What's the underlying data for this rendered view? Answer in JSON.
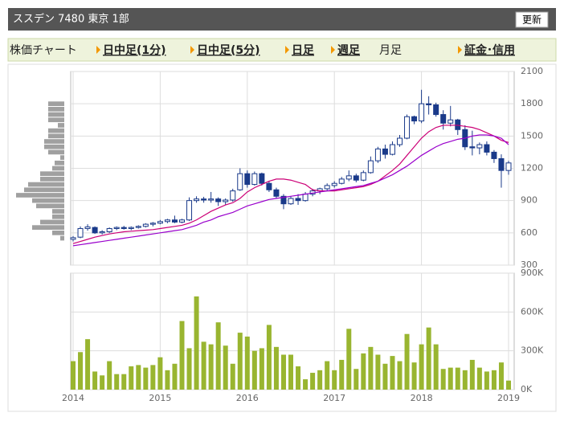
{
  "header": {
    "title": "ススデン  7480  東京 1部",
    "button": "更新"
  },
  "tabs": [
    {
      "label": "株価チャート",
      "link": false
    },
    {
      "label": "日中足(1分)",
      "link": true
    },
    {
      "label": "日中足(5分)",
      "link": true
    },
    {
      "label": "日足",
      "link": true
    },
    {
      "label": "週足",
      "link": true
    },
    {
      "label": "月足",
      "link": false
    },
    {
      "label": "証金･信用",
      "link": true
    }
  ],
  "chart_data": [
    {
      "type": "candlestick",
      "up_color": "#ffffff",
      "down_color": "#1a3a8a",
      "ylim": [
        300,
        2100
      ],
      "yticks": [
        300,
        600,
        900,
        1200,
        1500,
        1800,
        2100
      ],
      "grid": true,
      "ohlc": [
        [
          540,
          570,
          520,
          555
        ],
        [
          560,
          660,
          550,
          640
        ],
        [
          640,
          680,
          620,
          655
        ],
        [
          650,
          660,
          590,
          600
        ],
        [
          600,
          625,
          585,
          610
        ],
        [
          610,
          650,
          600,
          640
        ],
        [
          640,
          660,
          625,
          650
        ],
        [
          650,
          665,
          630,
          640
        ],
        [
          640,
          660,
          625,
          650
        ],
        [
          650,
          670,
          640,
          660
        ],
        [
          660,
          690,
          650,
          680
        ],
        [
          680,
          700,
          660,
          690
        ],
        [
          690,
          720,
          680,
          705
        ],
        [
          705,
          730,
          690,
          720
        ],
        [
          720,
          760,
          690,
          700
        ],
        [
          700,
          730,
          690,
          720
        ],
        [
          720,
          930,
          710,
          900
        ],
        [
          900,
          940,
          880,
          915
        ],
        [
          915,
          935,
          880,
          905
        ],
        [
          905,
          980,
          880,
          915
        ],
        [
          915,
          930,
          850,
          890
        ],
        [
          890,
          920,
          860,
          905
        ],
        [
          905,
          1010,
          890,
          990
        ],
        [
          1000,
          1200,
          990,
          1150
        ],
        [
          1150,
          1180,
          1020,
          1050
        ],
        [
          1050,
          1170,
          1040,
          1150
        ],
        [
          1150,
          1160,
          1040,
          1060
        ],
        [
          1060,
          1080,
          980,
          1000
        ],
        [
          1000,
          1020,
          920,
          940
        ],
        [
          940,
          960,
          820,
          870
        ],
        [
          870,
          940,
          860,
          920
        ],
        [
          920,
          960,
          860,
          900
        ],
        [
          900,
          980,
          890,
          960
        ],
        [
          960,
          1010,
          940,
          990
        ],
        [
          990,
          1020,
          960,
          1010
        ],
        [
          1010,
          1060,
          990,
          1040
        ],
        [
          1040,
          1080,
          1020,
          1060
        ],
        [
          1060,
          1120,
          1050,
          1100
        ],
        [
          1100,
          1180,
          1080,
          1130
        ],
        [
          1130,
          1150,
          1070,
          1090
        ],
        [
          1090,
          1180,
          1080,
          1160
        ],
        [
          1160,
          1310,
          1150,
          1270
        ],
        [
          1270,
          1400,
          1250,
          1380
        ],
        [
          1380,
          1420,
          1290,
          1330
        ],
        [
          1330,
          1450,
          1320,
          1420
        ],
        [
          1420,
          1510,
          1400,
          1480
        ],
        [
          1480,
          1700,
          1470,
          1680
        ],
        [
          1680,
          1690,
          1610,
          1640
        ],
        [
          1640,
          1930,
          1620,
          1800
        ],
        [
          1800,
          1870,
          1700,
          1790
        ],
        [
          1790,
          1810,
          1680,
          1700
        ],
        [
          1700,
          1740,
          1560,
          1620
        ],
        [
          1620,
          1780,
          1590,
          1650
        ],
        [
          1650,
          1660,
          1510,
          1560
        ],
        [
          1560,
          1600,
          1370,
          1400
        ],
        [
          1400,
          1550,
          1320,
          1390
        ],
        [
          1390,
          1440,
          1330,
          1420
        ],
        [
          1420,
          1450,
          1320,
          1350
        ],
        [
          1350,
          1370,
          1250,
          1290
        ],
        [
          1290,
          1330,
          1020,
          1180
        ],
        [
          1180,
          1270,
          1140,
          1250
        ]
      ],
      "series": [
        {
          "color": "#cc0077",
          "values": [
            500,
            520,
            540,
            560,
            575,
            590,
            600,
            610,
            615,
            620,
            625,
            630,
            640,
            650,
            660,
            670,
            690,
            720,
            760,
            800,
            830,
            860,
            880,
            920,
            980,
            1020,
            1050,
            1080,
            1100,
            1100,
            1090,
            1070,
            1050,
            1000,
            990,
            990,
            990,
            1000,
            1010,
            1020,
            1030,
            1050,
            1080,
            1130,
            1180,
            1240,
            1320,
            1400,
            1480,
            1540,
            1580,
            1600,
            1600,
            1600,
            1590,
            1580,
            1560,
            1530,
            1500,
            1460,
            1440
          ]
        },
        {
          "color": "#9900cc",
          "values": [
            480,
            490,
            500,
            510,
            520,
            530,
            540,
            550,
            560,
            570,
            580,
            590,
            600,
            610,
            620,
            630,
            650,
            670,
            700,
            720,
            750,
            770,
            790,
            820,
            850,
            870,
            890,
            910,
            920,
            930,
            940,
            950,
            960,
            970,
            980,
            990,
            1000,
            1010,
            1020,
            1030,
            1040,
            1060,
            1080,
            1110,
            1140,
            1180,
            1220,
            1270,
            1320,
            1360,
            1400,
            1430,
            1450,
            1470,
            1480,
            1500,
            1510,
            1510,
            1500,
            1480,
            1420
          ]
        }
      ],
      "volume_profile": {
        "color": "#a0a0a0",
        "prices": [
          1800,
          1750,
          1700,
          1650,
          1600,
          1550,
          1500,
          1450,
          1400,
          1350,
          1300,
          1250,
          1200,
          1150,
          1100,
          1050,
          1000,
          950,
          900,
          850,
          800,
          750,
          700,
          650,
          600,
          550
        ],
        "values": [
          20,
          20,
          20,
          20,
          8,
          20,
          20,
          25,
          25,
          20,
          5,
          12,
          15,
          30,
          30,
          45,
          50,
          60,
          40,
          35,
          15,
          15,
          30,
          40,
          15,
          5
        ]
      }
    },
    {
      "type": "bar",
      "color": "#99b530",
      "ylim": [
        0,
        900000
      ],
      "yticks": [
        {
          "value": 0,
          "label": "0K"
        },
        {
          "value": 300000,
          "label": "300K"
        },
        {
          "value": 600000,
          "label": "600K"
        },
        {
          "value": 900000,
          "label": "900K"
        }
      ],
      "grid": true,
      "categories": [
        "2014",
        null,
        null,
        null,
        null,
        null,
        null,
        null,
        null,
        null,
        null,
        null,
        "2015",
        null,
        null,
        null,
        null,
        null,
        null,
        null,
        null,
        null,
        null,
        null,
        "2016",
        null,
        null,
        null,
        null,
        null,
        null,
        null,
        null,
        null,
        null,
        null,
        "2017",
        null,
        null,
        null,
        null,
        null,
        null,
        null,
        null,
        null,
        null,
        null,
        "2018",
        null,
        null,
        null,
        null,
        null,
        null,
        null,
        null,
        null,
        null,
        null,
        "2019"
      ],
      "values": [
        220000,
        290000,
        390000,
        140000,
        110000,
        220000,
        120000,
        120000,
        180000,
        190000,
        170000,
        190000,
        250000,
        150000,
        200000,
        530000,
        320000,
        720000,
        370000,
        350000,
        520000,
        340000,
        200000,
        440000,
        410000,
        300000,
        320000,
        500000,
        330000,
        270000,
        270000,
        180000,
        80000,
        130000,
        150000,
        220000,
        150000,
        230000,
        470000,
        160000,
        280000,
        330000,
        270000,
        200000,
        260000,
        220000,
        430000,
        210000,
        350000,
        480000,
        350000,
        160000,
        170000,
        170000,
        150000,
        230000,
        170000,
        140000,
        150000,
        210000,
        70000
      ]
    }
  ]
}
